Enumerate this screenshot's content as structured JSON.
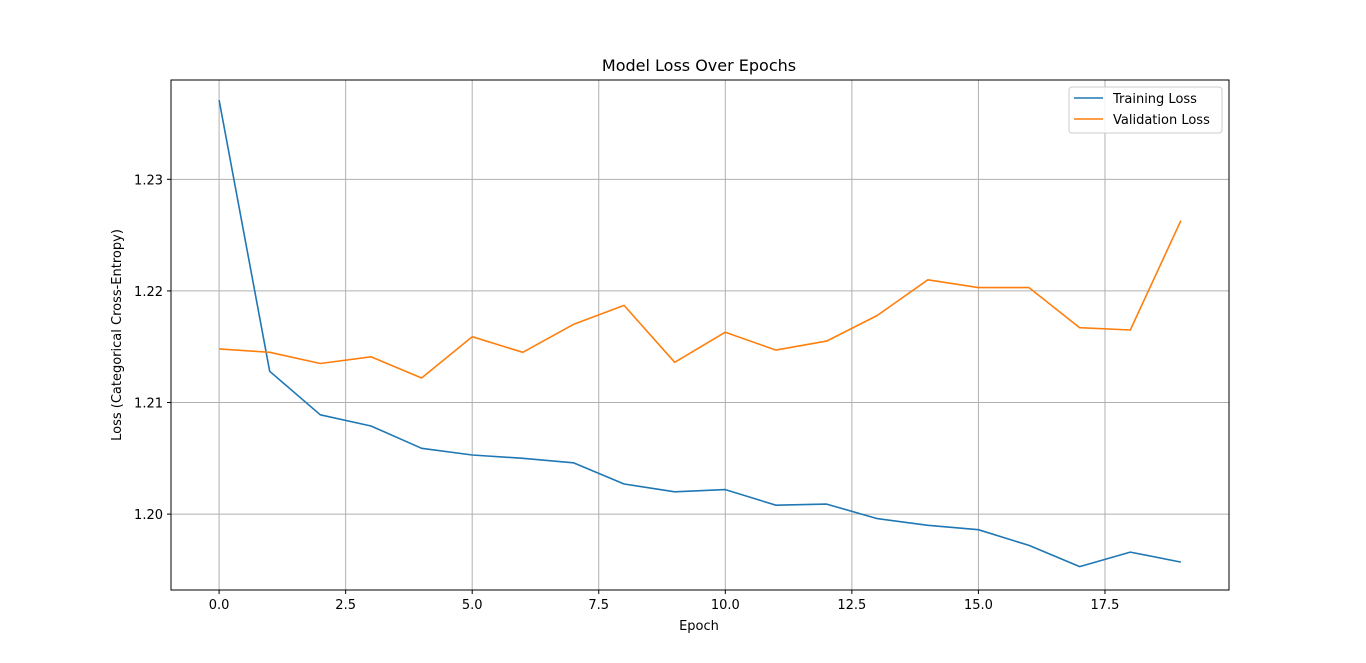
{
  "chart_data": {
    "type": "line",
    "title": "Model Loss Over Epochs",
    "xlabel": "Epoch",
    "ylabel": "Loss (Categorical Cross-Entropy)",
    "xlim": [
      -0.95,
      19.95
    ],
    "ylim": [
      1.1932,
      1.2389
    ],
    "xticks": [
      0.0,
      2.5,
      5.0,
      7.5,
      10.0,
      12.5,
      15.0,
      17.5
    ],
    "xtick_labels": [
      "0.0",
      "2.5",
      "5.0",
      "7.5",
      "10.0",
      "12.5",
      "15.0",
      "17.5"
    ],
    "yticks": [
      1.2,
      1.21,
      1.22,
      1.23
    ],
    "ytick_labels": [
      "1.20",
      "1.21",
      "1.22",
      "1.23"
    ],
    "grid": true,
    "legend_position": "top-right",
    "x": [
      0,
      1,
      2,
      3,
      4,
      5,
      6,
      7,
      8,
      9,
      10,
      11,
      12,
      13,
      14,
      15,
      16,
      17,
      18,
      19
    ],
    "series": [
      {
        "name": "Training Loss",
        "color": "#1f77b4",
        "values": [
          1.2371,
          1.2128,
          1.2089,
          1.2079,
          1.2059,
          1.2053,
          1.205,
          1.2046,
          1.2027,
          1.202,
          1.2022,
          1.2008,
          1.2009,
          1.1996,
          1.199,
          1.1986,
          1.1972,
          1.1953,
          1.1966,
          1.1957
        ]
      },
      {
        "name": "Validation Loss",
        "color": "#ff7f0e",
        "values": [
          1.2148,
          1.2145,
          1.2135,
          1.2141,
          1.2122,
          1.2159,
          1.2145,
          1.217,
          1.2187,
          1.2136,
          1.2163,
          1.2147,
          1.2155,
          1.2178,
          1.221,
          1.2203,
          1.2203,
          1.2167,
          1.2165,
          1.2263
        ]
      }
    ]
  }
}
